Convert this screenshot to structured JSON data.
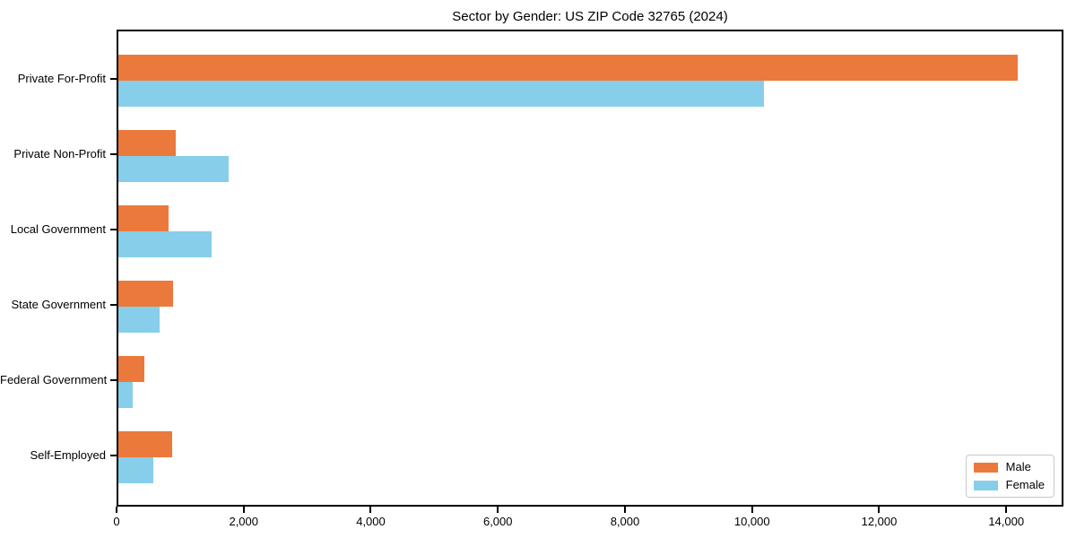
{
  "title": "Sector by Gender: US ZIP Code 32765 (2024)",
  "chart_data": {
    "type": "bar",
    "orientation": "horizontal",
    "title": "Sector by Gender: US ZIP Code 32765 (2024)",
    "categories": [
      "Private For-Profit",
      "Private Non-Profit",
      "Local Government",
      "State Government",
      "Federal Government",
      "Self-Employed"
    ],
    "series": [
      {
        "name": "Male",
        "color": "#EC793C",
        "values": [
          14200,
          900,
          800,
          870,
          410,
          850
        ]
      },
      {
        "name": "Female",
        "color": "#87CEEB",
        "values": [
          10200,
          1740,
          1480,
          650,
          230,
          550
        ]
      }
    ],
    "xlabel": "",
    "ylabel": "",
    "xlim": [
      0,
      14900
    ],
    "xticks": [
      {
        "value": 0,
        "label": "0"
      },
      {
        "value": 2000,
        "label": "2,000"
      },
      {
        "value": 4000,
        "label": "4,000"
      },
      {
        "value": 6000,
        "label": "6,000"
      },
      {
        "value": 8000,
        "label": "8,000"
      },
      {
        "value": 10000,
        "label": "10,000"
      },
      {
        "value": 12000,
        "label": "12,000"
      },
      {
        "value": 14000,
        "label": "14,000"
      }
    ],
    "grid": false,
    "legend_position": "lower right"
  },
  "colors": {
    "male": "#EC793C",
    "female": "#87CEEB",
    "spine": "#000000",
    "text": "#000000",
    "legend_border": "#c9c9c9"
  }
}
